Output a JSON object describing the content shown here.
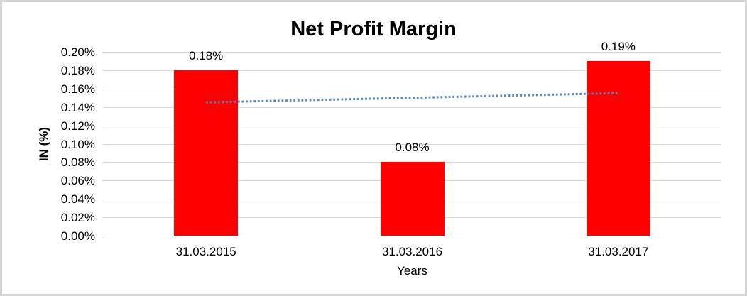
{
  "page": {
    "background": "#ffffff",
    "border_color": "#d5d5d5"
  },
  "chart_data": {
    "type": "bar",
    "title": "Net Profit Margin",
    "xlabel": "Years",
    "ylabel": "IN (%)",
    "categories": [
      "31.03.2015",
      "31.03.2016",
      "31.03.2017"
    ],
    "values": [
      0.18,
      0.08,
      0.19
    ],
    "data_labels": [
      "0.18%",
      "0.08%",
      "0.19%"
    ],
    "unit": "%",
    "ylim": [
      0,
      0.2
    ],
    "ytick_step": 0.02,
    "ytick_labels": [
      "0.00%",
      "0.02%",
      "0.04%",
      "0.06%",
      "0.08%",
      "0.10%",
      "0.12%",
      "0.14%",
      "0.16%",
      "0.18%",
      "0.20%"
    ],
    "grid": "horizontal",
    "gridline_color": "#d9d9d9",
    "bar_color": "#ff0000",
    "legend": "none",
    "trendline": {
      "style": "dotted",
      "color": "#4e87c6",
      "start_value": 0.145,
      "end_value": 0.155
    }
  }
}
